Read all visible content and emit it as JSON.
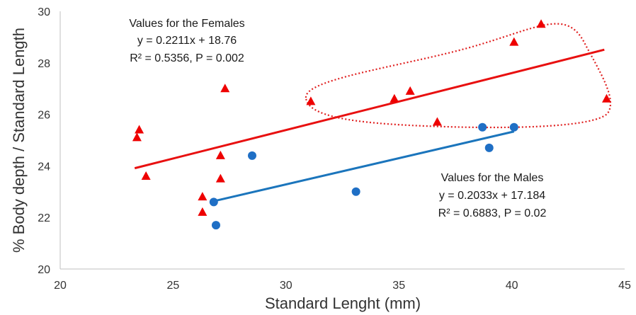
{
  "chart_data": {
    "type": "scatter",
    "xlabel": "Standard Lenght (mm)",
    "ylabel": "% Body depth / Standard Length",
    "xlim": [
      20,
      45
    ],
    "ylim": [
      20,
      30
    ],
    "xticks": [
      "20",
      "25",
      "30",
      "35",
      "40",
      "45"
    ],
    "yticks": [
      "20",
      "22",
      "24",
      "26",
      "28",
      "30"
    ],
    "grid": false,
    "series": [
      {
        "marker": "triangle",
        "color": "#ee0000",
        "points": [
          [
            23.4,
            25.1
          ],
          [
            23.5,
            25.4
          ],
          [
            23.8,
            23.6
          ],
          [
            26.3,
            22.8
          ],
          [
            26.3,
            22.2
          ],
          [
            27.1,
            24.4
          ],
          [
            27.1,
            23.5
          ],
          [
            27.3,
            27.0
          ],
          [
            31.1,
            26.5
          ],
          [
            34.8,
            26.6
          ],
          [
            35.5,
            26.9
          ],
          [
            36.7,
            25.7
          ],
          [
            40.1,
            28.8
          ],
          [
            41.3,
            29.5
          ],
          [
            44.2,
            26.6
          ]
        ],
        "trendline": {
          "x": [
            23.3,
            44.1
          ],
          "slope": 0.2211,
          "intercept": 18.76,
          "color": "#e81010"
        }
      },
      {
        "marker": "circle",
        "color": "#1f6fc5",
        "points": [
          [
            26.8,
            22.6
          ],
          [
            26.9,
            21.7
          ],
          [
            28.5,
            24.4
          ],
          [
            33.1,
            23.0
          ],
          [
            38.7,
            25.5
          ],
          [
            39.0,
            24.7
          ],
          [
            40.1,
            25.5
          ]
        ],
        "trendline": {
          "x": [
            26.8,
            40.1
          ],
          "slope": 0.2033,
          "intercept": 17.184,
          "color": "#1b75bc"
        }
      }
    ],
    "annotations": {
      "females": [
        "Values for the Females",
        "y = 0.2211x + 18.76",
        "R² = 0.5356, P = 0.002"
      ],
      "males": [
        "Values for the Males",
        "y = 0.2033x + 17.184",
        "R² = 0.6883, P = 0.02"
      ]
    },
    "highlight": {
      "shape": "dotted-ellipse",
      "color": "#e02020"
    }
  }
}
